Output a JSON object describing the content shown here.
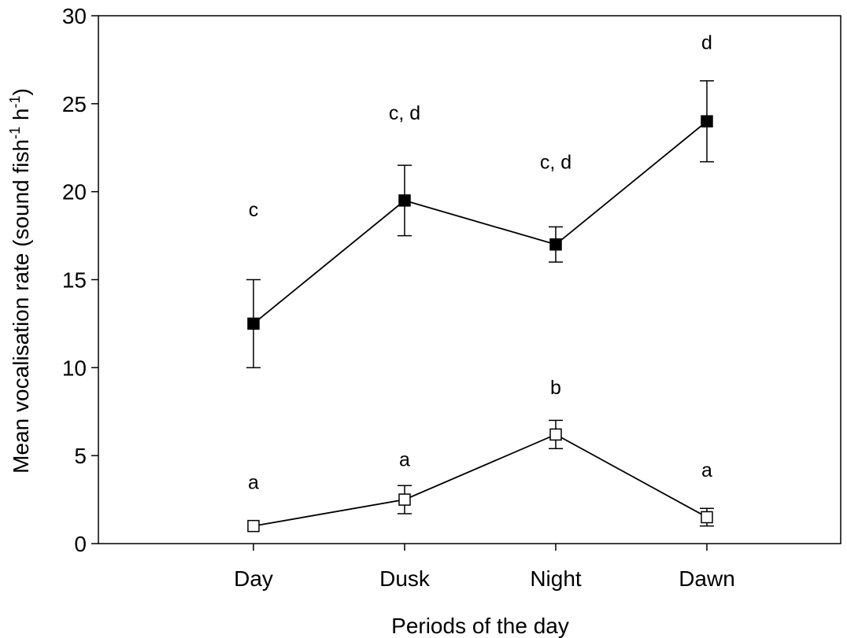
{
  "chart_data": {
    "type": "line",
    "title": "",
    "xlabel": "Periods of the day",
    "ylabel": {
      "main": "Mean vocalisation rate (sound fish",
      "sup1": "-1",
      "mid": " h",
      "sup2": "-1",
      "end": ")"
    },
    "categories": [
      "Day",
      "Dusk",
      "Night",
      "Dawn"
    ],
    "ylim": [
      0,
      30
    ],
    "yticks": [
      "0",
      "5",
      "10",
      "15",
      "20",
      "25",
      "30"
    ],
    "grid": false,
    "legend": "none",
    "series": [
      {
        "marker": "filled-square",
        "color": "#000000",
        "values": [
          12.5,
          19.5,
          17.0,
          24.0
        ],
        "errors": [
          2.5,
          2.0,
          1.0,
          2.3
        ],
        "letters": [
          "c",
          "c, d",
          "c, d",
          "d"
        ],
        "letter_y": [
          19.0,
          24.5,
          21.7,
          28.5
        ]
      },
      {
        "marker": "open-square",
        "color": "#000000",
        "values": [
          1.0,
          2.5,
          6.2,
          1.5
        ],
        "errors": [
          0.0,
          0.8,
          0.8,
          0.5
        ],
        "letters": [
          "a",
          "a",
          "b",
          "a"
        ],
        "letter_y": [
          3.5,
          4.8,
          8.9,
          4.2
        ]
      }
    ]
  }
}
